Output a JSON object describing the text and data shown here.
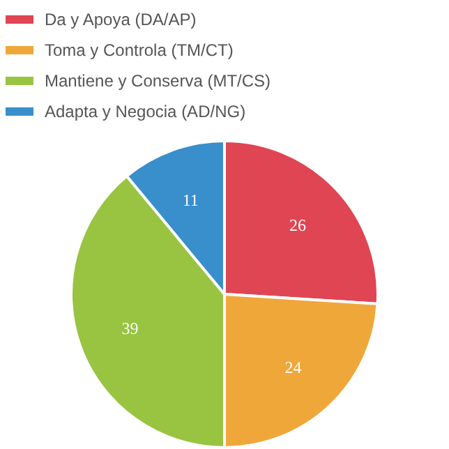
{
  "chart_data": {
    "type": "pie",
    "categories": [
      "Da y Apoya (DA/AP)",
      "Toma y Controla (TM/CT)",
      "Mantiene y Conserva (MT/CS)",
      "Adapta y Negocia (AD/NG)"
    ],
    "values": [
      26,
      24,
      39,
      11
    ],
    "colors": [
      "#e04553",
      "#f0a73a",
      "#98c441",
      "#388fcb"
    ],
    "data_labels": true,
    "legend": "top"
  }
}
